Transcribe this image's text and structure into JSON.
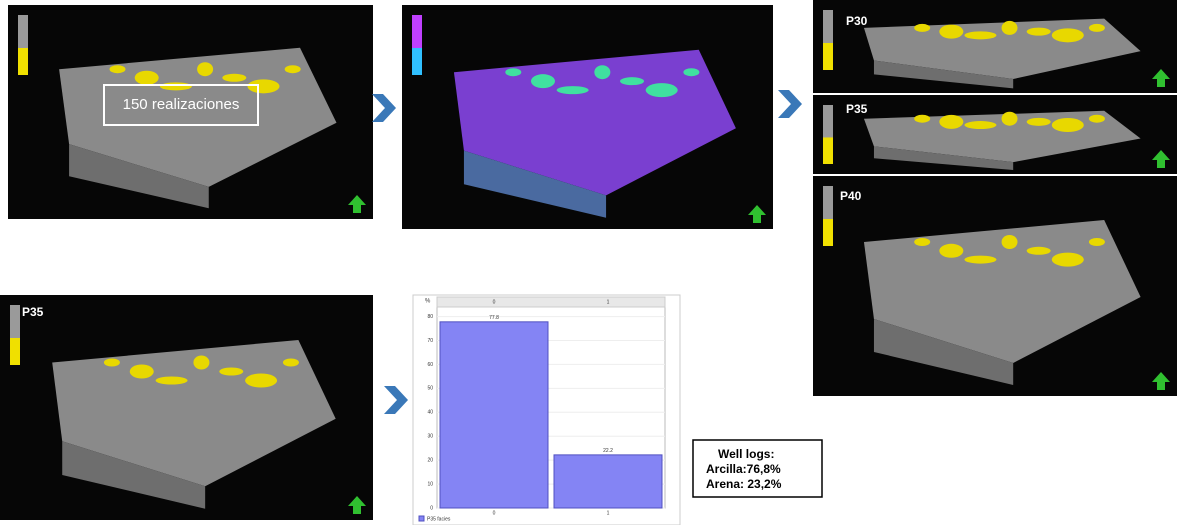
{
  "panels": {
    "realizations": "150 realizaciones",
    "p30": "P30",
    "p35": "P35",
    "p40": "P40",
    "p35_result": "P35"
  },
  "chart_data": {
    "type": "bar",
    "y_label": "%",
    "categories": [
      "0",
      "1"
    ],
    "values": [
      77.8,
      22.2
    ],
    "value_labels": [
      "77.8",
      "22.2"
    ],
    "color": "#8484f4",
    "legend": "P35 facies",
    "ylim": [
      0,
      84
    ],
    "yticks": [
      0,
      10,
      20,
      30,
      40,
      50,
      60,
      70,
      80
    ],
    "grid": true
  },
  "well_logs": {
    "title": "Well logs:",
    "clay": "Arcilla:76,8%",
    "sand": "Arena: 23,2%"
  }
}
